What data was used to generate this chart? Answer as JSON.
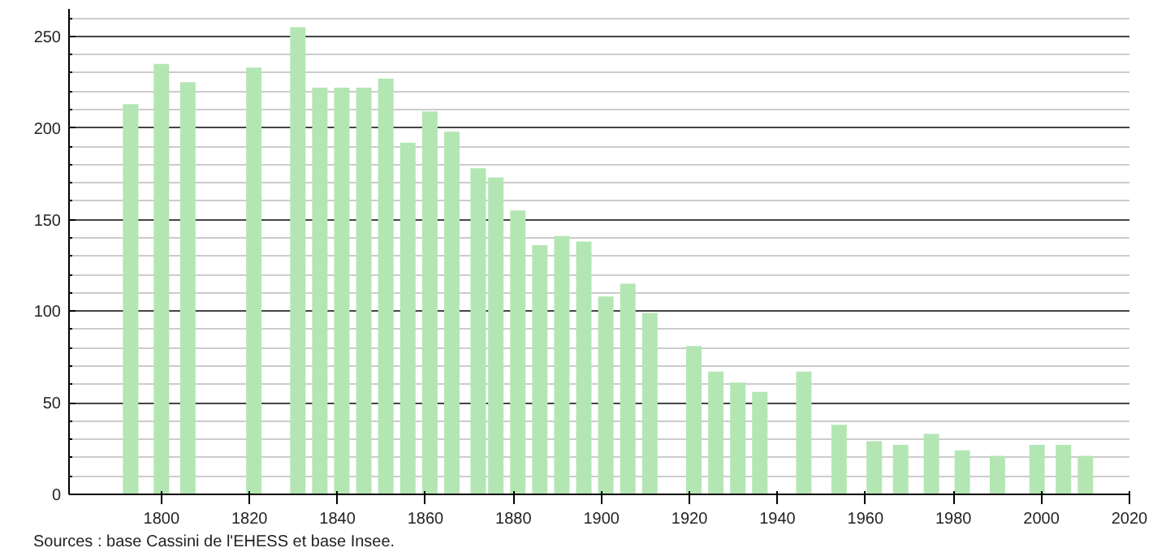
{
  "chart_data": {
    "type": "bar",
    "x": [
      1793,
      1800,
      1806,
      1821,
      1831,
      1836,
      1841,
      1846,
      1851,
      1856,
      1861,
      1866,
      1872,
      1876,
      1881,
      1886,
      1891,
      1896,
      1901,
      1906,
      1911,
      1921,
      1926,
      1931,
      1936,
      1946,
      1954,
      1962,
      1968,
      1975,
      1982,
      1990,
      1999,
      2005,
      2010
    ],
    "values": [
      213,
      235,
      225,
      233,
      255,
      222,
      222,
      222,
      227,
      192,
      209,
      198,
      178,
      173,
      155,
      136,
      141,
      138,
      108,
      115,
      99,
      81,
      67,
      61,
      56,
      67,
      38,
      29,
      27,
      33,
      24,
      21,
      27,
      27,
      21
    ],
    "color": "#b3e6b3",
    "xlim": [
      1779,
      2020
    ],
    "xticks": [
      1800,
      1820,
      1840,
      1860,
      1880,
      1900,
      1920,
      1940,
      1960,
      1980,
      2000,
      2020
    ],
    "ylim": [
      0,
      265
    ],
    "yticks": [
      0,
      50,
      100,
      150,
      200,
      250
    ],
    "grid": "y",
    "annotations": [
      "Sources : base Cassini de l'EHESS et base Insee."
    ]
  }
}
